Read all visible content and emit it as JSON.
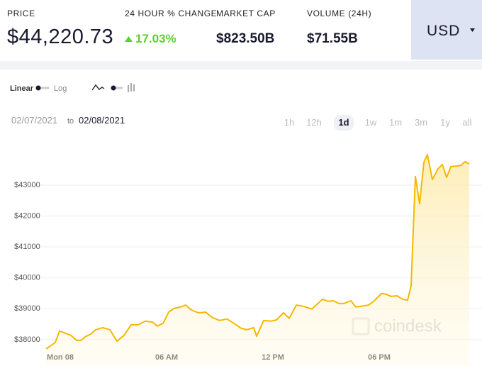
{
  "header": {
    "price_label": "PRICE",
    "price": "$44,220.73",
    "change_label": "24 HOUR % CHANGE",
    "change": "17.03%",
    "market_cap_label": "MARKET CAP",
    "market_cap": "$823.50B",
    "volume_label": "VOLUME (24H)",
    "volume": "$71.55B",
    "currency": "USD"
  },
  "controls": {
    "scale_options": [
      "Linear",
      "Log"
    ],
    "date_from": "02/07/2021",
    "date_separator": "to",
    "date_to": "02/08/2021",
    "ranges": [
      "1h",
      "12h",
      "1d",
      "1w",
      "1m",
      "3m",
      "1y",
      "all"
    ],
    "selected_range": "1d"
  },
  "chart_data": {
    "type": "line",
    "color": "#f5b800",
    "fill": true,
    "grid": true,
    "watermark": "coindesk",
    "x": [
      -0.8,
      -0.28,
      -0.04,
      0.28,
      0.6,
      0.92,
      1.2,
      1.4,
      1.72,
      2.0,
      2.4,
      2.8,
      3.2,
      3.6,
      4.0,
      4.4,
      4.8,
      5.2,
      5.48,
      5.8,
      6.12,
      6.4,
      6.8,
      7.08,
      7.4,
      7.8,
      8.2,
      8.6,
      9.0,
      9.4,
      9.8,
      10.2,
      10.52,
      10.92,
      11.08,
      11.48,
      11.88,
      12.2,
      12.6,
      12.92,
      13.32,
      13.72,
      14.2,
      14.8,
      15.12,
      15.4,
      15.72,
      16.0,
      16.4,
      16.68,
      17.0,
      17.4,
      17.72,
      18.12,
      18.4,
      18.68,
      19.0,
      19.32,
      19.6,
      19.8,
      20.04,
      20.28,
      20.52,
      20.72,
      21.0,
      21.32,
      21.56,
      21.8,
      22.04,
      22.4,
      22.6,
      22.84,
      23.08
    ],
    "values": [
      37700,
      37910,
      38280,
      38210,
      38140,
      37980,
      37980,
      38090,
      38180,
      38320,
      38390,
      38320,
      37950,
      38140,
      38480,
      38480,
      38600,
      38570,
      38440,
      38530,
      38890,
      39010,
      39060,
      39120,
      38960,
      38870,
      38890,
      38710,
      38620,
      38670,
      38530,
      38370,
      38320,
      38390,
      38110,
      38620,
      38600,
      38640,
      38870,
      38690,
      39120,
      39080,
      38990,
      39310,
      39240,
      39260,
      39170,
      39170,
      39260,
      39060,
      39080,
      39120,
      39260,
      39490,
      39470,
      39400,
      39420,
      39310,
      39280,
      39740,
      43280,
      42400,
      43740,
      43990,
      43180,
      43530,
      43670,
      43250,
      43600,
      43620,
      43640,
      43760,
      43690
    ],
    "xlim": [
      -0.8,
      23.08
    ],
    "ylim": [
      37400,
      44630
    ],
    "xticks": [
      {
        "value": 0,
        "label": "Mon 08"
      },
      {
        "value": 6,
        "label": "06 AM"
      },
      {
        "value": 12,
        "label": "12 PM"
      },
      {
        "value": 18,
        "label": "06 PM"
      }
    ],
    "yticks": [
      {
        "value": 38000,
        "label": "$38000"
      },
      {
        "value": 39000,
        "label": "$39000"
      },
      {
        "value": 40000,
        "label": "$40000"
      },
      {
        "value": 41000,
        "label": "$41000"
      },
      {
        "value": 42000,
        "label": "$42000"
      },
      {
        "value": 43000,
        "label": "$43000"
      }
    ]
  }
}
